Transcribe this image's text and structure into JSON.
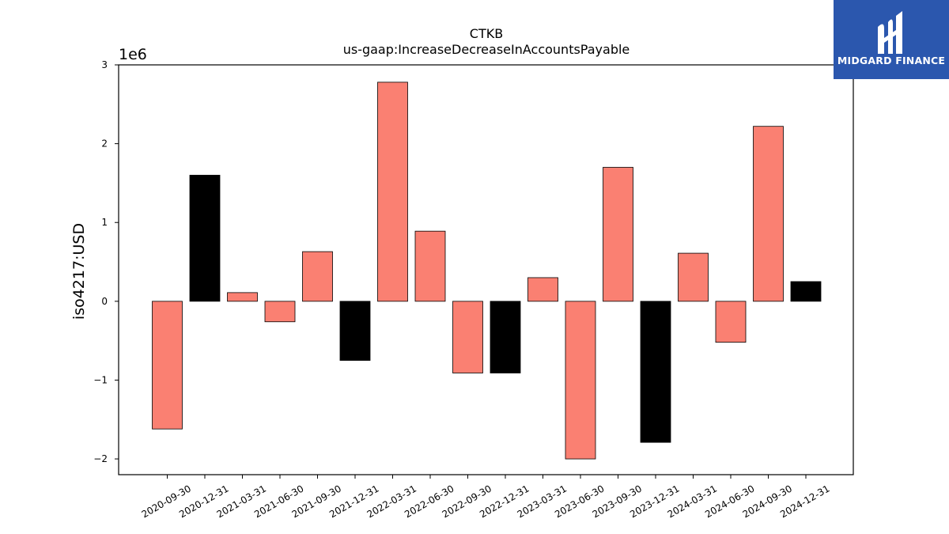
{
  "chart_data": {
    "type": "bar",
    "title": "CTKB",
    "subtitle": "us-gaap:IncreaseDecreaseInAccountsPayable",
    "ylabel": "iso4217:USD",
    "xlabel": "",
    "offset_label": "1e6",
    "scale": 1000000,
    "ylim": [
      -2.2,
      3.0
    ],
    "yticks": [
      -2,
      -1,
      0,
      1,
      2,
      3
    ],
    "ytick_labels": [
      "−2",
      "−1",
      "0",
      "1",
      "2",
      "3"
    ],
    "grid": false,
    "categories": [
      "2020-09-30",
      "2020-12-31",
      "2021-03-31",
      "2021-06-30",
      "2021-09-30",
      "2021-12-31",
      "2022-03-31",
      "2022-06-30",
      "2022-09-30",
      "2022-12-31",
      "2023-03-31",
      "2023-06-30",
      "2023-09-30",
      "2023-12-31",
      "2024-03-31",
      "2024-06-30",
      "2024-09-30",
      "2024-12-31"
    ],
    "values": [
      -1.62,
      1.6,
      0.11,
      -0.26,
      0.63,
      -0.75,
      2.78,
      0.89,
      -0.91,
      -0.91,
      0.3,
      -2.0,
      1.7,
      -1.79,
      0.61,
      -0.52,
      2.22,
      0.25
    ],
    "bar_colors": [
      "#fa8072",
      "#000000",
      "#fa8072",
      "#fa8072",
      "#fa8072",
      "#000000",
      "#fa8072",
      "#fa8072",
      "#fa8072",
      "#000000",
      "#fa8072",
      "#fa8072",
      "#fa8072",
      "#000000",
      "#fa8072",
      "#fa8072",
      "#fa8072",
      "#000000"
    ]
  },
  "logo": {
    "text": "MIDGARD FINANCE",
    "background": "#2b57ae"
  }
}
